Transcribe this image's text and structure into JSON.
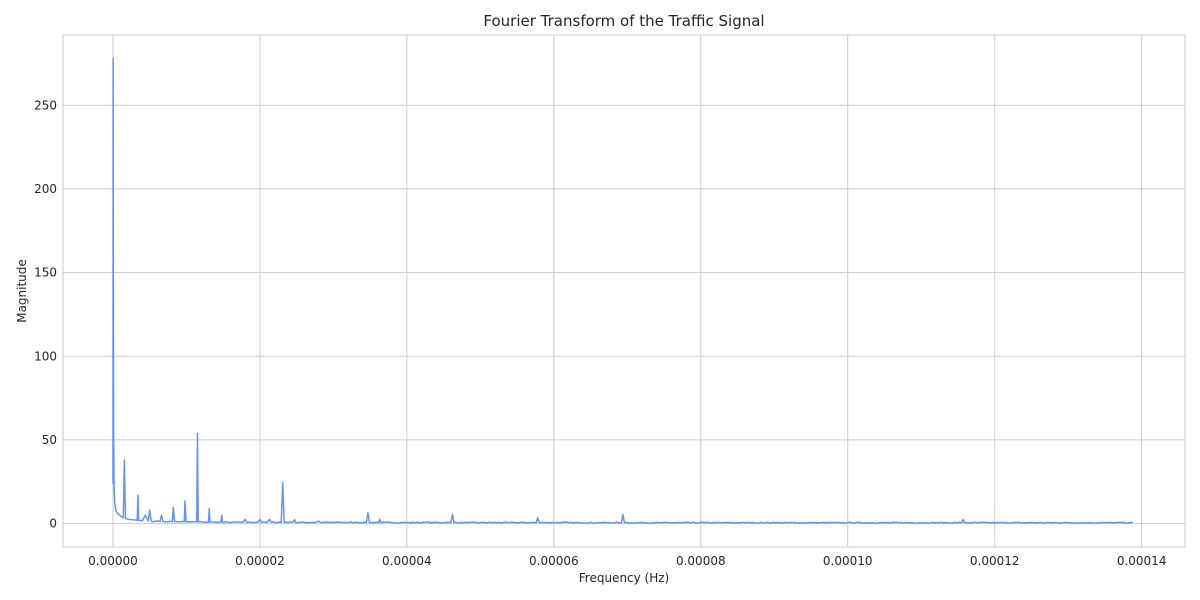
{
  "chart_data": {
    "type": "line",
    "title": "Fourier Transform of the Traffic Signal",
    "xlabel": "Frequency (Hz)",
    "ylabel": "Magnitude",
    "xlim": [
      -6.8e-06,
      0.0001459
    ],
    "ylim": [
      -14,
      292
    ],
    "x_ticks": [
      0,
      2e-05,
      4e-05,
      6e-05,
      8e-05,
      0.0001,
      0.00012,
      0.00014
    ],
    "x_tick_labels": [
      "0.00000",
      "0.00002",
      "0.00004",
      "0.00006",
      "0.00008",
      "0.00010",
      "0.00012",
      "0.00014"
    ],
    "y_ticks": [
      0,
      50,
      100,
      150,
      200,
      250
    ],
    "y_tick_labels": [
      "0",
      "50",
      "100",
      "150",
      "200",
      "250"
    ],
    "grid": true,
    "line_color": "#6495ED",
    "series": [
      {
        "x": [
          0,
          2e-08,
          8e-08,
          1.5e-07,
          2.5e-07,
          4e-07,
          6e-07,
          9e-07,
          1.2e-06,
          1.4e-06,
          1.55e-06,
          1.7e-06,
          1.9e-06,
          2.2e-06,
          2.6e-06,
          3e-06,
          3.3e-06,
          3.4e-06,
          3.5e-06,
          3.7e-06,
          4e-06,
          4.4e-06,
          4.8e-06,
          5e-06,
          5.2e-06,
          5.8e-06,
          6.4e-06,
          6.6e-06,
          6.8e-06,
          7.5e-06,
          8.1e-06,
          8.2e-06,
          8.4e-06,
          9e-06,
          9.7e-06,
          9.8e-06,
          9.95e-06,
          1.05e-05,
          1.14e-05,
          1.15e-05,
          1.16e-05,
          1.22e-05,
          1.3e-05,
          1.31e-05,
          1.32e-05,
          1.4e-05,
          1.47e-05,
          1.48e-05,
          1.49e-05,
          1.6e-05,
          1.75e-05,
          1.8e-05,
          1.95e-05,
          2e-05,
          2.1e-05,
          2.13e-05,
          2.2e-05,
          2.29e-05,
          2.31e-05,
          2.33e-05,
          2.45e-05,
          2.47e-05,
          2.6e-05,
          2.8e-05,
          3e-05,
          3.3e-05,
          3.45e-05,
          3.47e-05,
          3.49e-05,
          3.62e-05,
          3.63e-05,
          3.8e-05,
          4e-05,
          4.3e-05,
          4.6e-05,
          4.62e-05,
          4.64e-05,
          5e-05,
          5.4e-05,
          5.76e-05,
          5.78e-05,
          5.8e-05,
          6.2e-05,
          6.6e-05,
          6.92e-05,
          6.94e-05,
          6.96e-05,
          7.5e-05,
          8e-05,
          8.5e-05,
          9e-05,
          9.5e-05,
          0.0001,
          0.000105,
          0.00011,
          0.0001155,
          0.0001157,
          0.0001159,
          0.00012,
          0.000125,
          0.00013,
          0.000135,
          0.0001388
        ],
        "y": [
          24,
          278,
          60,
          22,
          12,
          8,
          6,
          5,
          4,
          3.5,
          38,
          3,
          2.8,
          2.5,
          2.3,
          2.2,
          2.0,
          17,
          2.0,
          1.8,
          1.7,
          5,
          1.6,
          8,
          1.5,
          1.4,
          1.3,
          5,
          1.3,
          1.2,
          1.2,
          9.5,
          1.2,
          1.1,
          1.1,
          13.5,
          1.1,
          1.0,
          1.0,
          54,
          1.0,
          1.0,
          0.9,
          9,
          0.9,
          0.9,
          0.9,
          5,
          0.9,
          0.8,
          0.8,
          2.5,
          0.8,
          2.5,
          0.8,
          2.5,
          0.8,
          0.8,
          24.5,
          0.8,
          0.8,
          2.3,
          0.7,
          1.5,
          0.7,
          0.7,
          0.7,
          6.5,
          0.7,
          0.7,
          2.5,
          0.6,
          0.6,
          1.0,
          0.6,
          5.5,
          0.6,
          0.6,
          0.6,
          0.6,
          3.5,
          0.6,
          0.6,
          0.5,
          0.5,
          5.5,
          0.5,
          0.5,
          0.8,
          0.5,
          0.7,
          0.5,
          0.6,
          0.5,
          0.5,
          0.5,
          2.5,
          0.5,
          0.5,
          0.6,
          0.5,
          0.5,
          0.5
        ]
      }
    ]
  }
}
